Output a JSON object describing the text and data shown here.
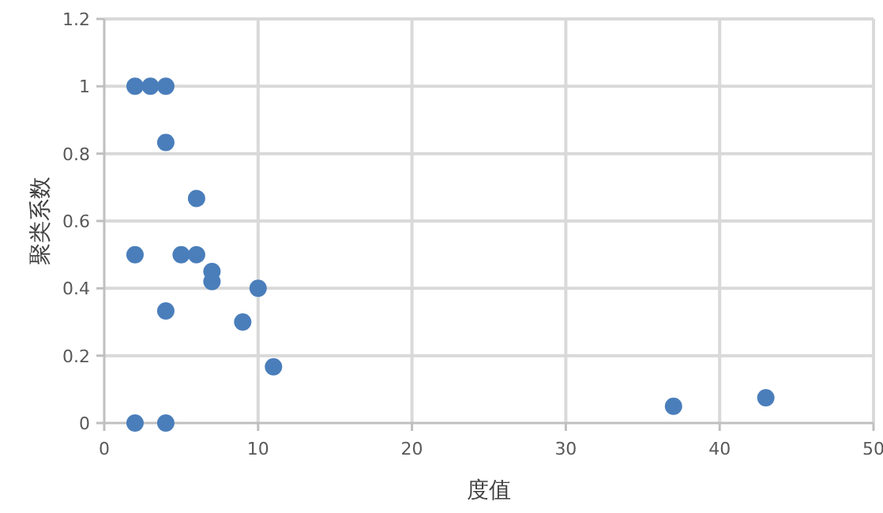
{
  "chart_data": {
    "type": "scatter",
    "xlabel": "度值",
    "ylabel": "聚类系数",
    "x": [
      2,
      3,
      4,
      2,
      2,
      4,
      6,
      5,
      6,
      7,
      7,
      10,
      4,
      9,
      11,
      4,
      37,
      43
    ],
    "series": [
      {
        "color": "#4a7ebb",
        "values": [
          1,
          1,
          1,
          0.5,
          0,
          0.833,
          0.667,
          0.5,
          0.5,
          0.45,
          0.42,
          0.4,
          0.333,
          0.3,
          0.167,
          0,
          0.05,
          0.075
        ]
      }
    ],
    "xlim": [
      0,
      50
    ],
    "ylim": [
      0,
      1.2
    ],
    "xticks": [
      0,
      10,
      20,
      30,
      40,
      50
    ],
    "yticks": [
      0,
      0.2,
      0.4,
      0.6,
      0.8,
      1,
      1.2
    ],
    "grid": true,
    "marker": "circle"
  }
}
